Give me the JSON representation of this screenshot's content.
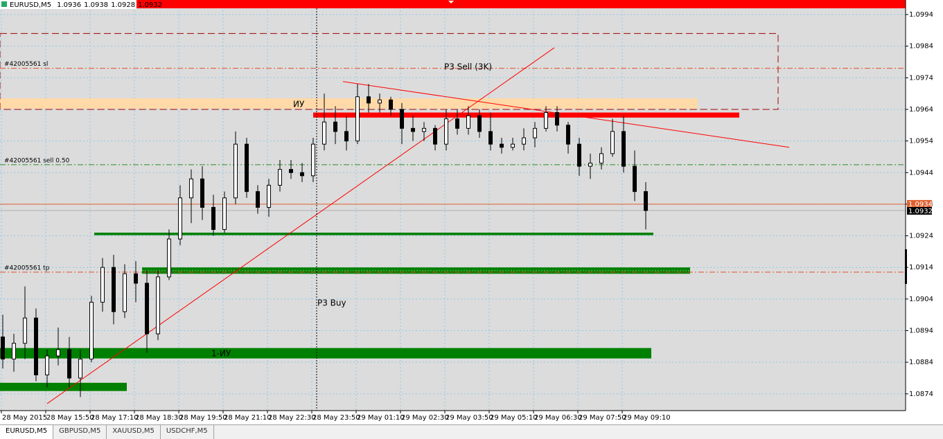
{
  "chart_data": {
    "type": "candlestick",
    "symbol": "EURUSD,M5",
    "header_prices": [
      1.0936,
      1.0938,
      1.0928,
      1.0932
    ],
    "categories": [
      "28 May 2015",
      null,
      null,
      null,
      "28 May 15:50",
      null,
      null,
      null,
      "28 May 17:10",
      null,
      null,
      null,
      "28 May 18:30",
      null,
      null,
      null,
      "28 May 19:50",
      null,
      null,
      null,
      "28 May 21:10",
      null,
      null,
      null,
      "28 May 22:30",
      null,
      null,
      null,
      "28 May 23:50",
      null,
      null,
      null,
      "29 May 01:10",
      null,
      null,
      null,
      "29 May 02:30",
      null,
      null,
      null,
      "29 May 03:50",
      null,
      null,
      null,
      "29 May 05:10",
      null,
      null,
      null,
      "29 May 06:30",
      null,
      null,
      null,
      "29 May 07:50",
      null,
      null,
      null,
      "29 May 09:10",
      null,
      null
    ],
    "ohlc": [
      [
        1.0892,
        1.0899,
        1.0882,
        1.0885
      ],
      [
        1.0885,
        1.0893,
        1.0881,
        1.089
      ],
      [
        1.089,
        1.0908,
        1.0885,
        1.0898
      ],
      [
        1.0898,
        1.0901,
        1.0878,
        1.088
      ],
      [
        1.088,
        1.0888,
        1.0876,
        1.0886
      ],
      [
        1.0886,
        1.0895,
        1.0883,
        1.0888
      ],
      [
        1.0888,
        1.0892,
        1.0876,
        1.0879
      ],
      [
        1.0879,
        1.0888,
        1.0873,
        1.0885
      ],
      [
        1.0885,
        1.0905,
        1.0884,
        1.0903
      ],
      [
        1.0903,
        1.0917,
        1.09,
        1.0914
      ],
      [
        1.0914,
        1.0918,
        1.0896,
        1.09
      ],
      [
        1.09,
        1.0915,
        1.0898,
        1.0912
      ],
      [
        1.0912,
        1.0916,
        1.0903,
        1.0909
      ],
      [
        1.0909,
        1.0913,
        1.0887,
        1.0893
      ],
      [
        1.0893,
        1.0913,
        1.0891,
        1.0911
      ],
      [
        1.0911,
        1.0926,
        1.091,
        1.0923
      ],
      [
        1.0923,
        1.094,
        1.0921,
        1.0936
      ],
      [
        1.0936,
        1.0945,
        1.0928,
        1.0942
      ],
      [
        1.0942,
        1.0946,
        1.0929,
        1.0933
      ],
      [
        1.0933,
        1.0937,
        1.0924,
        1.0926
      ],
      [
        1.0926,
        1.0938,
        1.0925,
        1.0936
      ],
      [
        1.0936,
        1.0957,
        1.0934,
        1.0953
      ],
      [
        1.0953,
        1.0955,
        1.0936,
        1.0938
      ],
      [
        1.0938,
        1.094,
        1.0931,
        1.0933
      ],
      [
        1.0933,
        1.0942,
        1.093,
        1.094
      ],
      [
        1.094,
        1.0948,
        1.0938,
        1.0945
      ],
      [
        1.0945,
        1.0948,
        1.0942,
        1.0944
      ],
      [
        1.0944,
        1.0947,
        1.0941,
        1.0943
      ],
      [
        1.0943,
        1.0955,
        1.0941,
        1.0953
      ],
      [
        1.0953,
        1.0969,
        1.0951,
        1.096
      ],
      [
        1.096,
        1.0965,
        1.0953,
        1.0957
      ],
      [
        1.0957,
        1.0962,
        1.0951,
        1.0954
      ],
      [
        1.0954,
        1.0972,
        1.0953,
        1.0968
      ],
      [
        1.0968,
        1.0972,
        1.0963,
        1.0966
      ],
      [
        1.0966,
        1.0969,
        1.0963,
        1.0967
      ],
      [
        1.0967,
        1.0968,
        1.0962,
        1.0964
      ],
      [
        1.0964,
        1.0966,
        1.0953,
        1.0958
      ],
      [
        1.0958,
        1.0962,
        1.0954,
        1.0957
      ],
      [
        1.0957,
        1.096,
        1.0954,
        1.0958
      ],
      [
        1.0958,
        1.0959,
        1.0951,
        1.0953
      ],
      [
        1.0953,
        1.0964,
        1.0951,
        1.0961
      ],
      [
        1.0961,
        1.0964,
        1.0956,
        1.0958
      ],
      [
        1.0958,
        1.0965,
        1.0956,
        1.0962
      ],
      [
        1.0962,
        1.0964,
        1.0955,
        1.0957
      ],
      [
        1.0957,
        1.0963,
        1.0951,
        1.0953
      ],
      [
        1.0953,
        1.0955,
        1.095,
        1.0952
      ],
      [
        1.0952,
        1.0955,
        1.0951,
        1.0953
      ],
      [
        1.0953,
        1.0958,
        1.0951,
        1.0955
      ],
      [
        1.0955,
        1.096,
        1.0952,
        1.0958
      ],
      [
        1.0958,
        1.0965,
        1.0957,
        1.0963
      ],
      [
        1.0963,
        1.0965,
        1.0957,
        1.0959
      ],
      [
        1.0959,
        1.096,
        1.095,
        1.0953
      ],
      [
        1.0953,
        1.0955,
        1.0943,
        1.0946
      ],
      [
        1.0946,
        1.095,
        1.0942,
        1.0947
      ],
      [
        1.0947,
        1.0952,
        1.0945,
        1.095
      ],
      [
        1.095,
        1.0961,
        1.0949,
        1.0957
      ],
      [
        1.0957,
        1.0962,
        1.0944,
        1.0946
      ],
      [
        1.0946,
        1.0951,
        1.0935,
        1.0938
      ],
      [
        1.0938,
        1.0941,
        1.0926,
        1.0932
      ]
    ],
    "ylim": [
      1.08687,
      1.09986
    ],
    "yticks": [
      1.0874,
      1.0884,
      1.0894,
      1.0904,
      1.0914,
      1.0924,
      1.0934,
      1.0944,
      1.0954,
      1.0964,
      1.0974,
      1.0984,
      1.0994
    ],
    "grid": true,
    "ask": 1.0934,
    "bid": 1.0932,
    "box": {
      "top": 1.0988,
      "bottom": 1.0964,
      "color": "#a00000"
    },
    "lines": [
      {
        "label": "#42005561 sl",
        "value": 1.0977,
        "color": "#e0502a"
      },
      {
        "label": "#42005561 sell 0.50",
        "value": 1.09465,
        "color": "#2a8a2a"
      },
      {
        "label": "#42005561 tp",
        "value": 1.09125,
        "color": "#e0502a"
      }
    ],
    "zones": [
      {
        "top": 1.09675,
        "bottom": 1.09642,
        "color": "#ffd9a8"
      },
      {
        "top": 1.0963,
        "bottom": 1.09614,
        "color": "#ff0000"
      },
      {
        "top": 1.0925,
        "bottom": 1.09242,
        "color": "#008000"
      },
      {
        "top": 1.0914,
        "bottom": 1.0912,
        "color": "#008000"
      },
      {
        "top": 1.08885,
        "bottom": 1.08852,
        "color": "#008000"
      },
      {
        "top": 1.08775,
        "bottom": 1.08749,
        "color": "#008000"
      }
    ],
    "trendlines": [
      {
        "from": 1.08709,
        "to": 1.09835,
        "color": "#ff0000"
      },
      {
        "from": 1.09728,
        "to": 1.0952,
        "color": "#ff0000"
      }
    ],
    "annotations": [
      "P3 Sell (3K)",
      "ИУ",
      "P3 Buy",
      "1-ИУ"
    ],
    "tabs": [
      "EURUSD,M5",
      "GBPUSD,M5",
      "XAUUSD,M5",
      "USDCHF,M5"
    ]
  }
}
